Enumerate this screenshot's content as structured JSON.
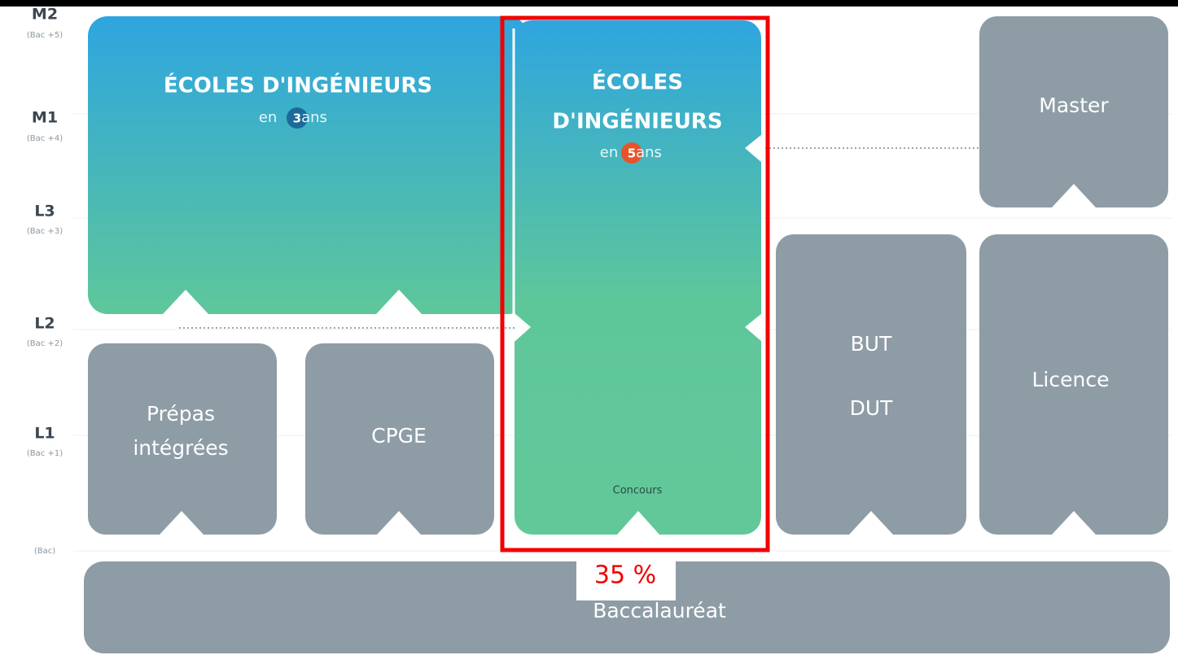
{
  "levels": [
    {
      "label": "M2",
      "sub": "(Bac +5)"
    },
    {
      "label": "M1",
      "sub": "(Bac +4)"
    },
    {
      "label": "L3",
      "sub": "(Bac +3)"
    },
    {
      "label": "L2",
      "sub": "(Bac +2)"
    },
    {
      "label": "L1",
      "sub": "(Bac +1)"
    },
    {
      "sub": "(Bac)"
    }
  ],
  "ecoles_3": {
    "title": "ÉCOLES D'INGÉNIEURS",
    "prefix": "en",
    "years": "3",
    "suffix": "ans"
  },
  "ecoles_5": {
    "title_lines": [
      "ÉCOLES",
      "D'INGÉNIEURS"
    ],
    "prefix": "en",
    "years": "5",
    "suffix": "ans",
    "note": "Concours"
  },
  "master": "Master",
  "but_dut": [
    "BUT",
    "DUT"
  ],
  "licence": "Licence",
  "prepas": [
    "Prépas",
    "intégrées"
  ],
  "cpge": "CPGE",
  "baccalaureat": "Baccalauréat",
  "highlight": {
    "label": "35 %"
  }
}
